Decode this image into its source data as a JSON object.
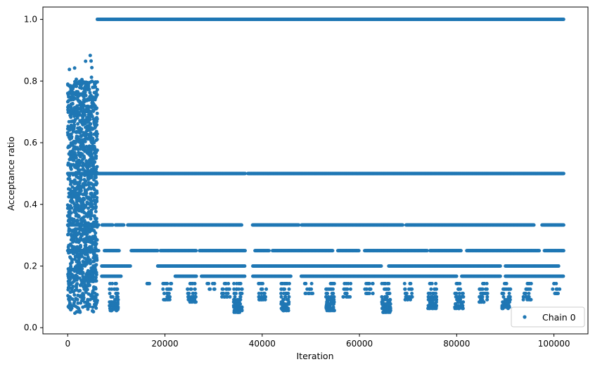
{
  "chart_data": {
    "type": "scatter",
    "xlabel": "Iteration",
    "ylabel": "Acceptance ratio",
    "xlim": [
      -5100,
      107000
    ],
    "ylim": [
      -0.02,
      1.04
    ],
    "xticks": [
      0,
      20000,
      40000,
      60000,
      80000,
      100000
    ],
    "xtick_labels": [
      "0",
      "20000",
      "40000",
      "60000",
      "80000",
      "100000"
    ],
    "yticks": [
      0.0,
      0.2,
      0.4,
      0.6,
      0.8,
      1.0
    ],
    "ytick_labels": [
      "0.0",
      "0.2",
      "0.4",
      "0.6",
      "0.8",
      "1.0"
    ],
    "grid": false,
    "legend_position": "lower-right",
    "colors": {
      "series": "#1f77b4"
    },
    "series": [
      {
        "name": "Chain 0",
        "marker": "dot",
        "burn_in": {
          "x_range": [
            0,
            6100
          ],
          "y_range": [
            0.03,
            0.89
          ]
        },
        "levels": [
          {
            "y": 1.0,
            "x_range": [
              6100,
              102000
            ],
            "gaps": []
          },
          {
            "y": 0.5,
            "x_range": [
              0,
              102000
            ],
            "gaps": [
              [
                36500,
                37000
              ]
            ]
          },
          {
            "y": 0.333,
            "x_range": [
              0,
              102000
            ],
            "gaps": [
              [
                6400,
                7000
              ],
              [
                9300,
                9800
              ],
              [
                11600,
                12300
              ],
              [
                35800,
                38000
              ],
              [
                47600,
                48100
              ],
              [
                69000,
                69500
              ],
              [
                96000,
                97500
              ]
            ]
          },
          {
            "y": 0.25,
            "x_range": [
              0,
              102000
            ],
            "gaps": [
              [
                6400,
                7500
              ],
              [
                10600,
                13000
              ],
              [
                18500,
                19000
              ],
              [
                26500,
                27000
              ],
              [
                36500,
                38500
              ],
              [
                41500,
                42000
              ],
              [
                54500,
                55500
              ],
              [
                60000,
                61000
              ],
              [
                74000,
                74500
              ],
              [
                81000,
                82000
              ],
              [
                97000,
                98000
              ]
            ]
          },
          {
            "y": 0.2,
            "x_range": [
              7000,
              101000
            ],
            "gaps": [
              [
                13000,
                18500
              ],
              [
                36500,
                38000
              ],
              [
                64500,
                66000
              ],
              [
                89000,
                90000
              ]
            ]
          },
          {
            "y": 0.167,
            "x_range": [
              7000,
              102000
            ],
            "gaps": [
              [
                11000,
                22000
              ],
              [
                26500,
                27500
              ],
              [
                36500,
                38000
              ],
              [
                46000,
                48000
              ],
              [
                80000,
                81000
              ],
              [
                89000,
                90000
              ]
            ]
          }
        ],
        "dips": [
          {
            "x": 9500,
            "y_min": 0.055
          },
          {
            "x": 16800,
            "y_min": 0.14
          },
          {
            "x": 20500,
            "y_min": 0.09
          },
          {
            "x": 25500,
            "y_min": 0.08
          },
          {
            "x": 29500,
            "y_min": 0.12
          },
          {
            "x": 32500,
            "y_min": 0.1
          },
          {
            "x": 35000,
            "y_min": 0.05
          },
          {
            "x": 40000,
            "y_min": 0.09
          },
          {
            "x": 44700,
            "y_min": 0.055
          },
          {
            "x": 49500,
            "y_min": 0.11
          },
          {
            "x": 54000,
            "y_min": 0.055
          },
          {
            "x": 57500,
            "y_min": 0.1
          },
          {
            "x": 62000,
            "y_min": 0.11
          },
          {
            "x": 65500,
            "y_min": 0.05
          },
          {
            "x": 70000,
            "y_min": 0.09
          },
          {
            "x": 75000,
            "y_min": 0.06
          },
          {
            "x": 80500,
            "y_min": 0.06
          },
          {
            "x": 85500,
            "y_min": 0.08
          },
          {
            "x": 90200,
            "y_min": 0.06
          },
          {
            "x": 94500,
            "y_min": 0.09
          },
          {
            "x": 100500,
            "y_min": 0.11
          }
        ]
      }
    ]
  }
}
